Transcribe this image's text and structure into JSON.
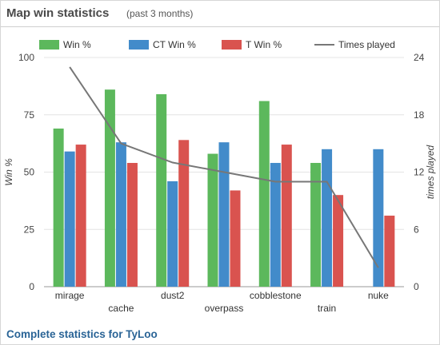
{
  "header": {
    "title": "Map win statistics",
    "subtitle": "(past 3 months)"
  },
  "footer": {
    "link_text": "Complete statistics for TyLoo"
  },
  "colors": {
    "win": "#5cb85c",
    "ct_win": "#428bca",
    "t_win": "#d9534f",
    "times_played": "#777777"
  },
  "chart_data": {
    "type": "bar",
    "categories": [
      "mirage",
      "cache",
      "dust2",
      "overpass",
      "cobblestone",
      "train",
      "nuke"
    ],
    "series": [
      {
        "name": "Win %",
        "color": "#5cb85c",
        "values": [
          69,
          86,
          84,
          58,
          81,
          54,
          0
        ]
      },
      {
        "name": "CT Win %",
        "color": "#428bca",
        "values": [
          59,
          63,
          46,
          63,
          54,
          60,
          60
        ]
      },
      {
        "name": "T Win %",
        "color": "#d9534f",
        "values": [
          62,
          54,
          64,
          42,
          62,
          40,
          31
        ]
      }
    ],
    "line_series": {
      "name": "Times played",
      "color": "#777777",
      "axis": "right",
      "values": [
        23,
        15,
        13,
        12,
        11,
        11,
        2
      ]
    },
    "ylabel": "Win %",
    "y2label": "times played",
    "ylim": [
      0,
      100
    ],
    "y2lim": [
      0,
      24
    ],
    "yticks": [
      0,
      25,
      50,
      75,
      100
    ],
    "y2ticks": [
      0,
      6,
      12,
      18,
      24
    ],
    "grid": "horizontal",
    "legend_position": "top"
  }
}
